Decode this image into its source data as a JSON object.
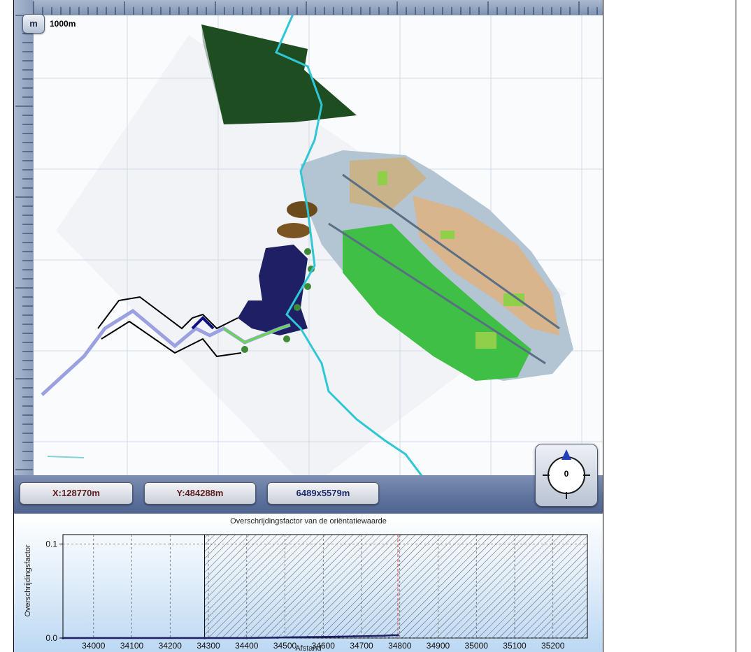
{
  "map": {
    "scale_button_label": "m",
    "scale_label": "1000m"
  },
  "status": {
    "x_coord": "X:128770m",
    "y_coord": "Y:484288m",
    "extent": "6489x5579m"
  },
  "compass": {
    "rotation_value": "0"
  },
  "colors": {
    "accent": "#2fc6d6",
    "status_bar": "#5d729c",
    "forest": "#1e4d22",
    "urban_green": "#3fbf45",
    "route_navy": "#1e1f64",
    "marker_line": "#e05050"
  },
  "icons": {
    "compass": "compass-icon",
    "north_arrow": "north-arrow-icon"
  },
  "chart_data": {
    "type": "area",
    "title": "Overschrijdingsfactor van de oriëntatiewaarde",
    "xlabel": "Afstand",
    "ylabel": "Overschrijdingsfactor",
    "xlim": [
      33920,
      35290
    ],
    "ylim": [
      0.0,
      0.11
    ],
    "x_ticks": [
      34000,
      34100,
      34200,
      34300,
      34400,
      34500,
      34600,
      34700,
      34800,
      34900,
      35000,
      35100,
      35200
    ],
    "y_ticks": [
      0.0,
      0.1
    ],
    "grid": true,
    "hatched_region": [
      34290,
      35290
    ],
    "marker_x": 34795,
    "series": [
      {
        "x": [
          33920,
          34290,
          34400,
          34480,
          34520,
          34560,
          34600,
          34640,
          34680,
          34720,
          34760,
          34780,
          34795
        ],
        "y": [
          0.0,
          0.0,
          0.0,
          0.0005,
          0.0008,
          0.001,
          0.0012,
          0.0015,
          0.0018,
          0.002,
          0.0025,
          0.003,
          0.003
        ]
      }
    ]
  }
}
